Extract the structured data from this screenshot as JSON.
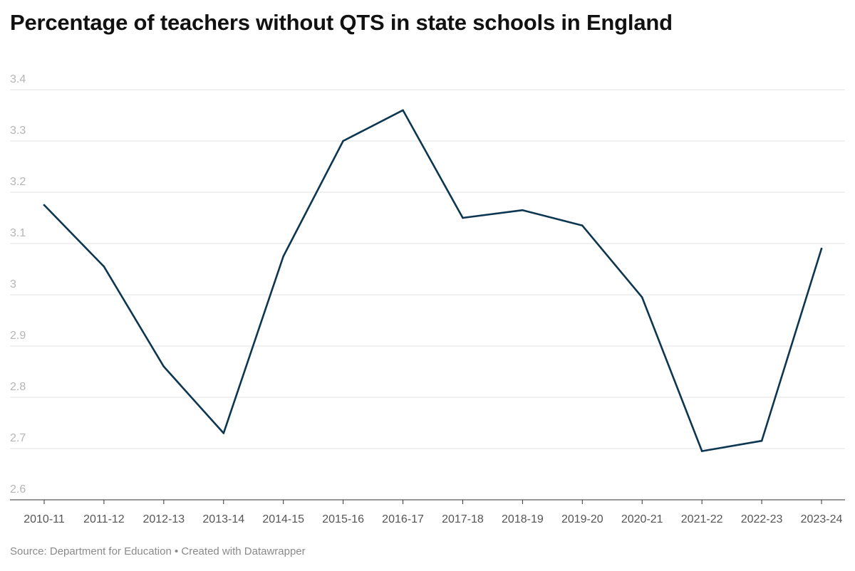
{
  "title": "Percentage of teachers without QTS in state schools in England",
  "footer": {
    "source": "Source: Department for Education",
    "separator": " • ",
    "credit": "Created with Datawrapper"
  },
  "colors": {
    "line": "#0d3650",
    "grid": "#e2e2e2",
    "axis": "#333333"
  },
  "chart_data": {
    "type": "line",
    "title": "Percentage of teachers without QTS in state schools in England",
    "xlabel": "",
    "ylabel": "",
    "ylim": [
      2.6,
      3.4
    ],
    "yticks": [
      2.6,
      2.7,
      2.8,
      2.9,
      3,
      3.1,
      3.2,
      3.3,
      3.4
    ],
    "grid": true,
    "legend": "none",
    "categories": [
      "2010-11",
      "2011-12",
      "2012-13",
      "2013-14",
      "2014-15",
      "2015-16",
      "2016-17",
      "2017-18",
      "2018-19",
      "2019-20",
      "2020-21",
      "2021-22",
      "2022-23",
      "2023-24"
    ],
    "series": [
      {
        "values": [
          3.175,
          3.055,
          2.86,
          2.73,
          3.075,
          3.3,
          3.36,
          3.15,
          3.165,
          3.135,
          2.995,
          2.695,
          2.715,
          3.09
        ]
      }
    ]
  }
}
